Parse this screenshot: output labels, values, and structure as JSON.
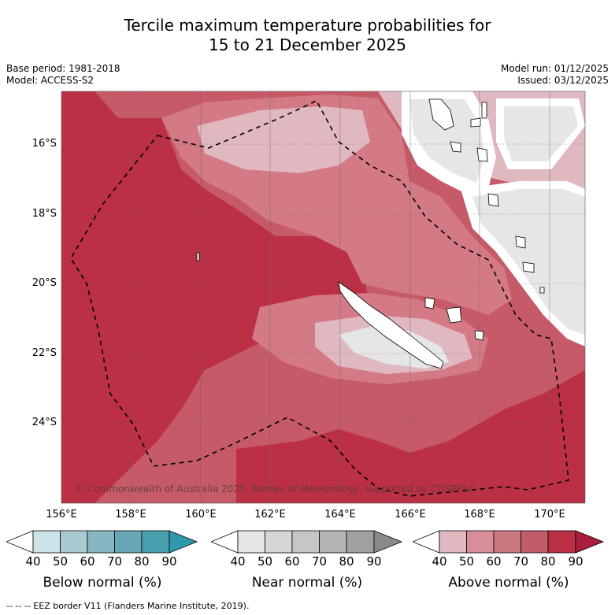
{
  "title": {
    "line1": "Tercile maximum temperature probabilities for",
    "line2": "15 to 21 December 2025"
  },
  "meta": {
    "base_period": "Base period: 1981-2018",
    "model": "Model: ACCESS-S2",
    "model_run": "Model run: 01/12/2025",
    "issued": "Issued: 03/12/2025"
  },
  "map": {
    "lat_labels": [
      "16°S",
      "18°S",
      "20°S",
      "22°S",
      "24°S"
    ],
    "lon_labels": [
      "156°E",
      "158°E",
      "160°E",
      "162°E",
      "164°E",
      "166°E",
      "168°E",
      "170°E"
    ],
    "copyright": "© Commonwealth of Australia 2025, Bureau of Meteorology, supported by COSPPac",
    "colors": {
      "above_80": "#bb3044",
      "above_70": "#c75a68",
      "above_60": "#d37a86",
      "above_50": "#e0b8bf",
      "near_40": "#e6e6e6",
      "land": "#ffffff",
      "eez": "#000000"
    }
  },
  "legends": [
    {
      "name": "below",
      "title": "Below normal (%)",
      "ticks": [
        "40",
        "50",
        "60",
        "70",
        "80",
        "90"
      ],
      "colors": [
        "#ffffff",
        "#cce3e8",
        "#a9c9d0",
        "#87b5c0",
        "#67a6b5",
        "#4aa0b0",
        "#2f98ad"
      ]
    },
    {
      "name": "near",
      "title": "Near normal (%)",
      "ticks": [
        "40",
        "50",
        "60",
        "70",
        "80",
        "90"
      ],
      "colors": [
        "#ffffff",
        "#e6e6e6",
        "#d6d6d6",
        "#c6c6c6",
        "#b5b5b5",
        "#a0a0a0",
        "#8a8a8a"
      ]
    },
    {
      "name": "above",
      "title": "Above normal (%)",
      "ticks": [
        "40",
        "50",
        "60",
        "70",
        "80",
        "90"
      ],
      "colors": [
        "#ffffff",
        "#e0b8bf",
        "#d68f99",
        "#c97880",
        "#c25c6a",
        "#bb3044",
        "#a81e3c"
      ]
    }
  ],
  "footnote": "-- -- -- EEZ border V11 (Flanders Marine Institute, 2019)."
}
